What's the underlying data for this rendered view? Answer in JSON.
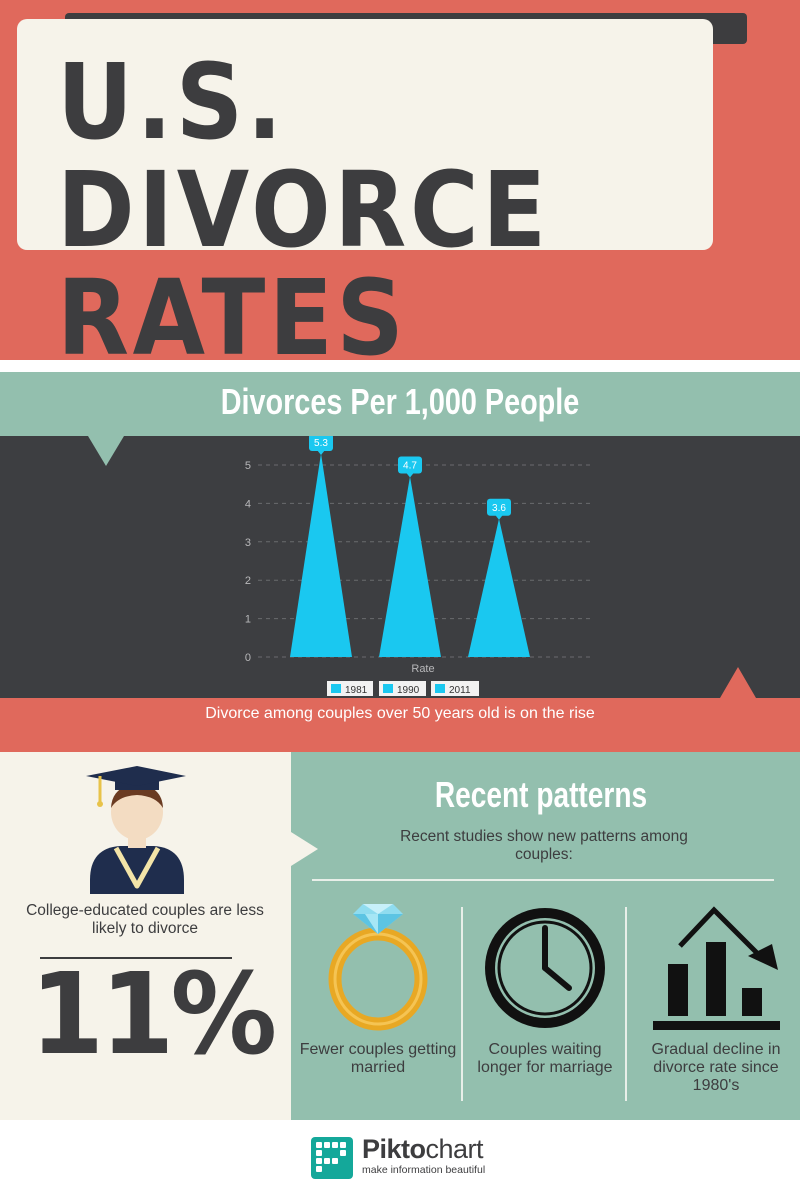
{
  "header": {
    "title_line1": "U.S. DIVORCE",
    "title_line2": "RATES"
  },
  "chart_section": {
    "title": "Divorces Per 1,000 People",
    "subline": "Divorce among couples over 50 years old is on the rise"
  },
  "chart_data": {
    "type": "bar",
    "title": "Divorces Per 1,000 People",
    "xlabel": "Rate",
    "ylabel": "",
    "ylim": [
      0,
      5
    ],
    "yticks": [
      0,
      1,
      2,
      3,
      4,
      5
    ],
    "grid": true,
    "legend_position": "bottom",
    "series": [
      {
        "name": "1981",
        "values": [
          5.3
        ]
      },
      {
        "name": "1990",
        "values": [
          4.7
        ]
      },
      {
        "name": "2011",
        "values": [
          3.6
        ]
      }
    ],
    "data_labels": [
      "5.3",
      "4.7",
      "3.6"
    ],
    "bar_color": "#1ac8f0"
  },
  "college": {
    "text": "College-educated couples are less likely to divorce",
    "stat": "11%"
  },
  "patterns": {
    "title": "Recent patterns",
    "intro": "Recent studies show new patterns among couples:",
    "items": [
      {
        "icon": "ring-icon",
        "caption": "Fewer couples getting married"
      },
      {
        "icon": "clock-icon",
        "caption": "Couples waiting longer for marriage"
      },
      {
        "icon": "decline-chart-icon",
        "caption": "Gradual decline in divorce rate since 1980's"
      }
    ]
  },
  "footer": {
    "brand_bold": "Pikto",
    "brand_light": "chart",
    "tagline": "make information beautiful"
  },
  "colors": {
    "coral": "#e0695c",
    "sage": "#93bfae",
    "charcoal": "#3d3e41",
    "cream": "#f6f3ea",
    "cyan": "#1ac8f0",
    "gold": "#e8a824",
    "logo_teal": "#14a89a"
  }
}
